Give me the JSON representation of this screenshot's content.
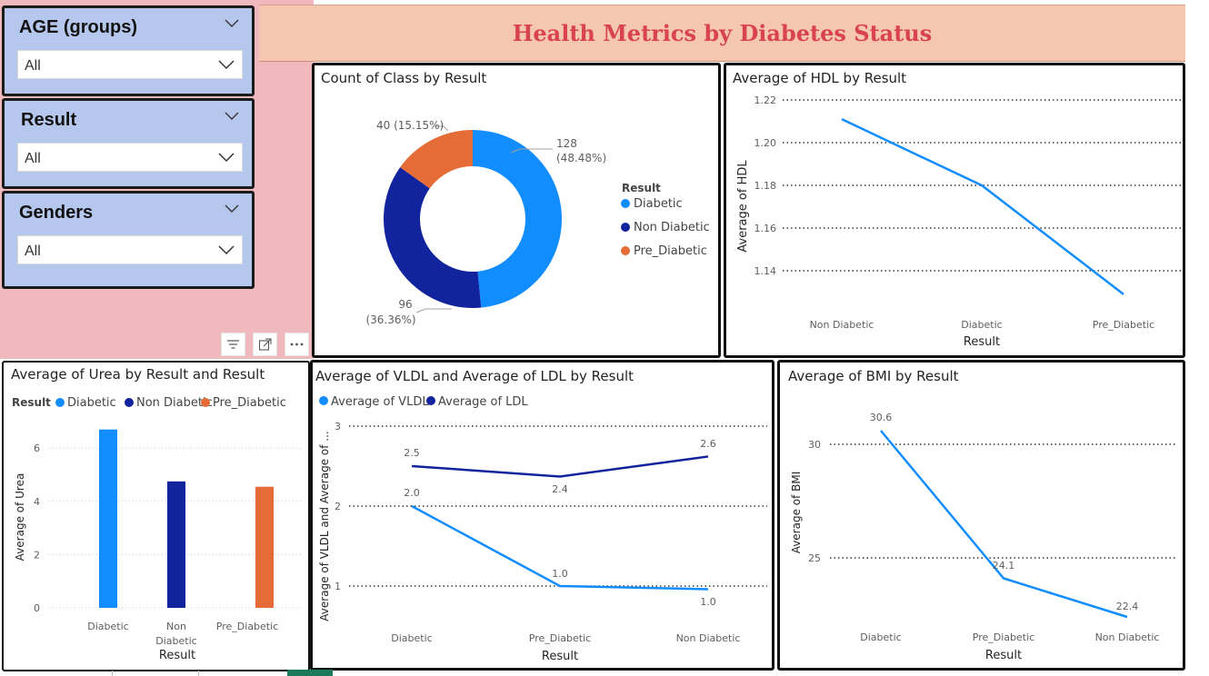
{
  "report_title": "Health Metrics by Diabetes Status",
  "slicers": [
    {
      "title": "AGE (groups)",
      "value": "All"
    },
    {
      "title": "Result",
      "value": "All"
    },
    {
      "title": "Genders",
      "value": "All"
    }
  ],
  "visual_header_icons": [
    "filter-icon",
    "focus-mode-icon",
    "more-options-icon"
  ],
  "colors": {
    "diabetic": "#118DFF",
    "non_diabetic": "#12239E",
    "pre_diabetic": "#E66C37"
  },
  "chart_data": [
    {
      "id": "donut",
      "type": "pie",
      "title": "Count of Class by Result",
      "legend_title": "Result",
      "legend_position": "right",
      "categories": [
        "Diabetic",
        "Non Diabetic",
        "Pre_Diabetic"
      ],
      "values": [
        128,
        96,
        40
      ],
      "data_labels": [
        {
          "count": "128",
          "pct": "(48.48%)"
        },
        {
          "count": "96",
          "pct": "(36.36%)"
        },
        {
          "count": "40 (15.15%)",
          "pct": ""
        }
      ]
    },
    {
      "id": "hdl",
      "type": "line",
      "title": "Average of HDL by Result",
      "xlabel": "Result",
      "ylabel": "Average of HDL",
      "categories": [
        "Non Diabetic",
        "Diabetic",
        "Pre_Diabetic"
      ],
      "values": [
        1.211,
        1.18,
        1.129
      ],
      "yticks": [
        "1.14",
        "1.16",
        "1.18",
        "1.20",
        "1.22"
      ],
      "ylim": [
        1.12,
        1.22
      ],
      "grid": true
    },
    {
      "id": "urea",
      "type": "bar",
      "title": "Average of Urea by Result and Result",
      "legend_title": "Result",
      "legend_position": "top",
      "xlabel": "Result",
      "ylabel": "Average of Urea",
      "categories": [
        "Diabetic",
        "Non Diabetic",
        "Pre_Diabetic"
      ],
      "series": [
        {
          "name": "Diabetic",
          "values": [
            6.7,
            null,
            null
          ]
        },
        {
          "name": "Non Diabetic",
          "values": [
            null,
            4.75,
            null
          ]
        },
        {
          "name": "Pre_Diabetic",
          "values": [
            null,
            null,
            4.55
          ]
        }
      ],
      "values": [
        6.7,
        4.75,
        4.55
      ],
      "yticks": [
        "0",
        "2",
        "4",
        "6"
      ],
      "ylim": [
        0,
        7.5
      ],
      "grid": true
    },
    {
      "id": "vldl_ldl",
      "type": "line",
      "title": "Average of VLDL and Average of LDL by Result",
      "legend_position": "top",
      "xlabel": "Result",
      "ylabel": "Average of VLDL and Average of ...",
      "categories": [
        "Diabetic",
        "Pre_Diabetic",
        "Non Diabetic"
      ],
      "series": [
        {
          "name": "Average of VLDL",
          "values": [
            2.0,
            1.0,
            0.96
          ],
          "labels": [
            "2.0",
            "1.0",
            "1.0"
          ]
        },
        {
          "name": "Average of LDL",
          "values": [
            2.5,
            2.37,
            2.62
          ],
          "labels": [
            "2.5",
            "2.4",
            "2.6"
          ]
        }
      ],
      "yticks": [
        "1",
        "2",
        "3"
      ],
      "ylim": [
        0.6,
        3.0
      ],
      "grid": true
    },
    {
      "id": "bmi",
      "type": "line",
      "title": "Average of BMI by Result",
      "xlabel": "Result",
      "ylabel": "Average of BMI",
      "categories": [
        "Diabetic",
        "Pre_Diabetic",
        "Non Diabetic"
      ],
      "values": [
        30.6,
        24.1,
        22.4
      ],
      "labels": [
        "30.6",
        "24.1",
        "22.4"
      ],
      "yticks": [
        "25",
        "30"
      ],
      "ylim": [
        20,
        31.8
      ],
      "grid": true
    }
  ]
}
